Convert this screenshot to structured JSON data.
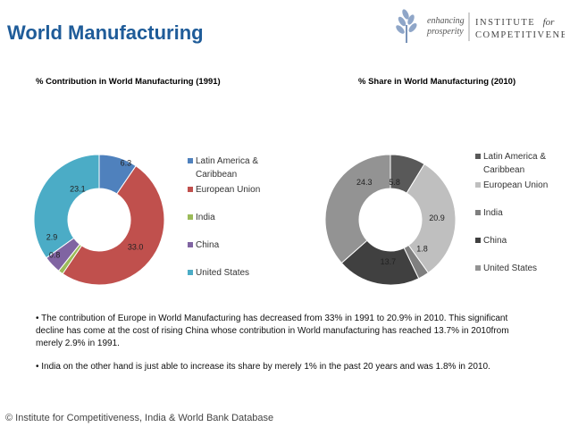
{
  "page": {
    "title": "World Manufacturing"
  },
  "logo": {
    "tagline_line1": "enhancing",
    "tagline_line2": "prosperity",
    "institute_word": "INSTITUTE",
    "for_word": "for",
    "competitiveness_word": "COMPETITIVENESS"
  },
  "chart_data": [
    {
      "type": "pie",
      "title": "% Contribution in World Manufacturing (1991)",
      "categories": [
        "Latin America & Caribbean",
        "European Union",
        "India",
        "China",
        "United States"
      ],
      "values": [
        6.3,
        33.0,
        0.8,
        2.9,
        23.1
      ],
      "value_labels": [
        "6.3",
        "33.0",
        "0.8",
        "2.9",
        "23.1"
      ],
      "colors": [
        "#4f81bd",
        "#c0504d",
        "#9bbb59",
        "#8064a2",
        "#4bacc6"
      ],
      "legend_placement": "right"
    },
    {
      "type": "pie",
      "title": "% Share in World Manufacturing (2010)",
      "categories": [
        "Latin America & Caribbean",
        "European Union",
        "India",
        "China",
        "United States"
      ],
      "values": [
        5.8,
        20.9,
        1.8,
        13.7,
        24.3
      ],
      "value_labels": [
        "5.8",
        "20.9",
        "1.8",
        "13.7",
        "24.3"
      ],
      "colors": [
        "#595959",
        "#bfbfbf",
        "#7f7f7f",
        "#404040",
        "#939393"
      ],
      "legend_placement": "right"
    }
  ],
  "bullets": [
    "The contribution of Europe in World Manufacturing has decreased from 33% in 1991 to 20.9% in 2010. This significant decline has come at the cost of rising China whose contribution in World manufacturing has reached 13.7%  in 2010from merely 2.9% in 1991.",
    "India on the other hand is just able to increase its share by merely 1% in the past 20 years and was 1.8% in 2010."
  ],
  "footer": {
    "source": "© Institute for Competitiveness, India & World Bank Database"
  }
}
